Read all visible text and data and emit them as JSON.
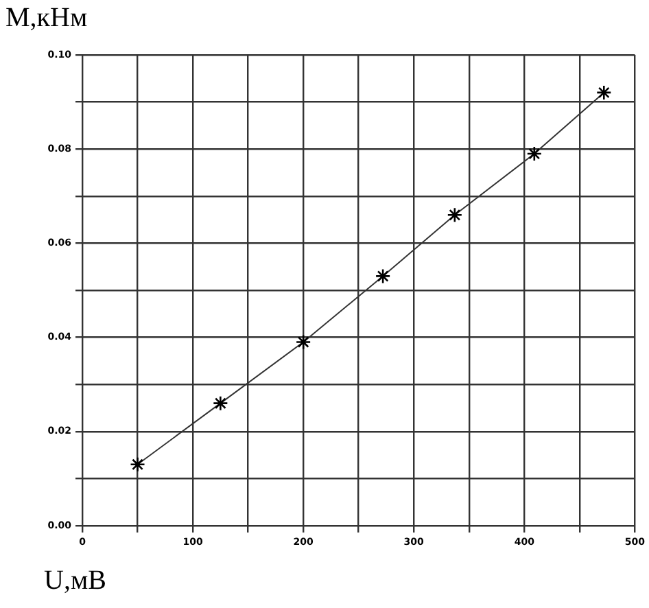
{
  "chart_data": {
    "type": "line",
    "xlabel": "U,мВ",
    "ylabel": "M,кНм",
    "x": [
      50,
      125,
      200,
      272,
      337,
      409,
      472
    ],
    "series": [
      {
        "color": "#333333",
        "values": [
          0.013,
          0.026,
          0.039,
          0.053,
          0.066,
          0.079,
          0.092
        ]
      }
    ],
    "xlim": [
      0,
      500
    ],
    "ylim": [
      0,
      0.1
    ],
    "xticks": [
      0,
      {
        "value": 50,
        "label": null
      },
      100,
      {
        "value": 150,
        "label": null
      },
      200,
      {
        "value": 250,
        "label": null
      },
      300,
      {
        "value": 350,
        "label": null
      },
      400,
      {
        "value": 450,
        "label": null
      },
      500
    ],
    "yticks": [
      {
        "value": 0,
        "label": "0.00"
      },
      {
        "value": 0.01,
        "label": null
      },
      0.02,
      {
        "value": 0.03,
        "label": null
      },
      0.04,
      {
        "value": 0.05,
        "label": null
      },
      0.06,
      {
        "value": 0.07,
        "label": null
      },
      0.08,
      {
        "value": 0.09,
        "label": null
      },
      {
        "value": 0.1,
        "label": "0.10"
      }
    ],
    "grid": true,
    "marker": "cross",
    "line_style": "solid",
    "legend": false
  }
}
